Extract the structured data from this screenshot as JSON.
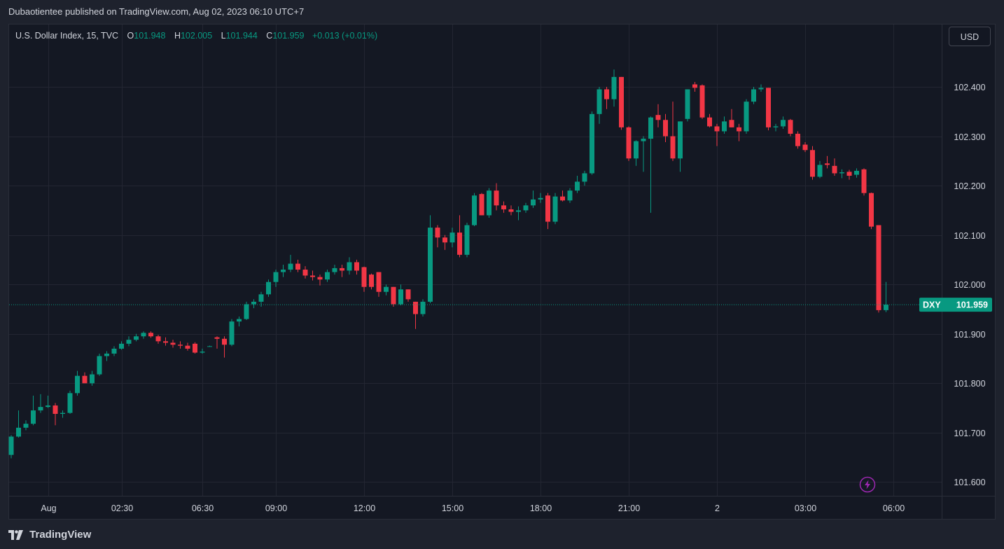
{
  "header": {
    "publisher": "Dubaotientee published on TradingView.com, Aug 02, 2023 06:10 UTC+7"
  },
  "legend": {
    "symbol": "U.S. Dollar Index, 15, TVC",
    "o_label": "O",
    "o_value": "101.948",
    "h_label": "H",
    "h_value": "102.005",
    "l_label": "L",
    "l_value": "101.944",
    "c_label": "C",
    "c_value": "101.959",
    "change": "+0.013 (+0.01%)"
  },
  "currency_button": "USD",
  "price_tag": {
    "symbol": "DXY",
    "value": "101.959"
  },
  "footer": {
    "brand": "TradingView"
  },
  "colors": {
    "up": "#089981",
    "down": "#f23645",
    "grid": "#232632",
    "background": "#141823",
    "alert_icon": "#9c27b0"
  },
  "icons": {
    "alert": "lightning-icon",
    "logo": "tradingview-logo-icon"
  },
  "chart_data": {
    "type": "candlestick",
    "interval": "15",
    "ylim": [
      101.58,
      102.475
    ],
    "yticks": [
      101.6,
      101.7,
      101.8,
      101.9,
      102.0,
      102.1,
      102.2,
      102.3,
      102.4
    ],
    "ytick_labels": [
      "101.600",
      "101.700",
      "101.800",
      "101.900",
      "102.000",
      "102.100",
      "102.200",
      "102.300",
      "102.400"
    ],
    "xticks": [
      {
        "label": "Aug",
        "index": 5
      },
      {
        "label": "02:30",
        "index": 15
      },
      {
        "label": "06:30",
        "index": 26
      },
      {
        "label": "09:00",
        "index": 36
      },
      {
        "label": "12:00",
        "index": 48
      },
      {
        "label": "15:00",
        "index": 60
      },
      {
        "label": "18:00",
        "index": 72
      },
      {
        "label": "21:00",
        "index": 84
      },
      {
        "label": "2",
        "index": 96
      },
      {
        "label": "03:00",
        "index": 108
      },
      {
        "label": "06:00",
        "index": 120
      }
    ],
    "last_price": 101.959,
    "candles": [
      {
        "o": 101.655,
        "h": 101.695,
        "l": 101.648,
        "c": 101.692
      },
      {
        "o": 101.692,
        "h": 101.745,
        "l": 101.69,
        "c": 101.71
      },
      {
        "o": 101.71,
        "h": 101.725,
        "l": 101.705,
        "c": 101.718
      },
      {
        "o": 101.718,
        "h": 101.775,
        "l": 101.715,
        "c": 101.745
      },
      {
        "o": 101.745,
        "h": 101.778,
        "l": 101.74,
        "c": 101.752
      },
      {
        "o": 101.752,
        "h": 101.775,
        "l": 101.75,
        "c": 101.755
      },
      {
        "o": 101.755,
        "h": 101.76,
        "l": 101.715,
        "c": 101.738
      },
      {
        "o": 101.738,
        "h": 101.745,
        "l": 101.73,
        "c": 101.74
      },
      {
        "o": 101.74,
        "h": 101.785,
        "l": 101.738,
        "c": 101.78
      },
      {
        "o": 101.78,
        "h": 101.825,
        "l": 101.775,
        "c": 101.815
      },
      {
        "o": 101.815,
        "h": 101.822,
        "l": 101.8,
        "c": 101.8
      },
      {
        "o": 101.8,
        "h": 101.825,
        "l": 101.795,
        "c": 101.818
      },
      {
        "o": 101.818,
        "h": 101.86,
        "l": 101.815,
        "c": 101.855
      },
      {
        "o": 101.855,
        "h": 101.865,
        "l": 101.845,
        "c": 101.86
      },
      {
        "o": 101.86,
        "h": 101.875,
        "l": 101.855,
        "c": 101.87
      },
      {
        "o": 101.87,
        "h": 101.885,
        "l": 101.868,
        "c": 101.88
      },
      {
        "o": 101.88,
        "h": 101.895,
        "l": 101.875,
        "c": 101.888
      },
      {
        "o": 101.888,
        "h": 101.9,
        "l": 101.885,
        "c": 101.895
      },
      {
        "o": 101.895,
        "h": 101.905,
        "l": 101.89,
        "c": 101.902
      },
      {
        "o": 101.902,
        "h": 101.905,
        "l": 101.892,
        "c": 101.895
      },
      {
        "o": 101.895,
        "h": 101.898,
        "l": 101.88,
        "c": 101.885
      },
      {
        "o": 101.885,
        "h": 101.893,
        "l": 101.876,
        "c": 101.882
      },
      {
        "o": 101.882,
        "h": 101.888,
        "l": 101.872,
        "c": 101.878
      },
      {
        "o": 101.878,
        "h": 101.885,
        "l": 101.87,
        "c": 101.876
      },
      {
        "o": 101.876,
        "h": 101.882,
        "l": 101.866,
        "c": 101.87
      },
      {
        "o": 101.88,
        "h": 101.883,
        "l": 101.86,
        "c": 101.862
      },
      {
        "o": 101.862,
        "h": 101.87,
        "l": 101.86,
        "c": 101.864
      },
      {
        "o": 101.875,
        "h": 101.876,
        "l": 101.874,
        "c": 101.875
      },
      {
        "o": 101.893,
        "h": 101.895,
        "l": 101.87,
        "c": 101.89
      },
      {
        "o": 101.89,
        "h": 101.895,
        "l": 101.852,
        "c": 101.878
      },
      {
        "o": 101.878,
        "h": 101.93,
        "l": 101.875,
        "c": 101.925
      },
      {
        "o": 101.925,
        "h": 101.935,
        "l": 101.915,
        "c": 101.93
      },
      {
        "o": 101.93,
        "h": 101.965,
        "l": 101.928,
        "c": 101.96
      },
      {
        "o": 101.96,
        "h": 101.97,
        "l": 101.952,
        "c": 101.965
      },
      {
        "o": 101.965,
        "h": 101.985,
        "l": 101.955,
        "c": 101.98
      },
      {
        "o": 101.98,
        "h": 102.01,
        "l": 101.975,
        "c": 102.005
      },
      {
        "o": 102.005,
        "h": 102.03,
        "l": 101.995,
        "c": 102.025
      },
      {
        "o": 102.025,
        "h": 102.04,
        "l": 102.015,
        "c": 102.03
      },
      {
        "o": 102.03,
        "h": 102.06,
        "l": 102.025,
        "c": 102.042
      },
      {
        "o": 102.042,
        "h": 102.05,
        "l": 102.025,
        "c": 102.03
      },
      {
        "o": 102.03,
        "h": 102.037,
        "l": 102.012,
        "c": 102.018
      },
      {
        "o": 102.018,
        "h": 102.028,
        "l": 102.008,
        "c": 102.015
      },
      {
        "o": 102.015,
        "h": 102.02,
        "l": 101.998,
        "c": 102.01
      },
      {
        "o": 102.01,
        "h": 102.03,
        "l": 102.005,
        "c": 102.025
      },
      {
        "o": 102.025,
        "h": 102.04,
        "l": 102.02,
        "c": 102.033
      },
      {
        "o": 102.033,
        "h": 102.04,
        "l": 102.015,
        "c": 102.028
      },
      {
        "o": 102.028,
        "h": 102.055,
        "l": 102.02,
        "c": 102.045
      },
      {
        "o": 102.045,
        "h": 102.05,
        "l": 102.02,
        "c": 102.028
      },
      {
        "o": 102.035,
        "h": 102.036,
        "l": 101.985,
        "c": 101.995
      },
      {
        "o": 102.02,
        "h": 102.022,
        "l": 101.99,
        "c": 101.995
      },
      {
        "o": 102.025,
        "h": 102.025,
        "l": 101.975,
        "c": 101.985
      },
      {
        "o": 101.985,
        "h": 102.0,
        "l": 101.978,
        "c": 101.995
      },
      {
        "o": 101.995,
        "h": 101.995,
        "l": 101.955,
        "c": 101.96
      },
      {
        "o": 101.96,
        "h": 102.0,
        "l": 101.958,
        "c": 101.99
      },
      {
        "o": 101.99,
        "h": 101.99,
        "l": 101.965,
        "c": 101.97
      },
      {
        "o": 101.965,
        "h": 101.965,
        "l": 101.91,
        "c": 101.94
      },
      {
        "o": 101.94,
        "h": 101.97,
        "l": 101.935,
        "c": 101.965
      },
      {
        "o": 101.965,
        "h": 102.14,
        "l": 101.962,
        "c": 102.115
      },
      {
        "o": 102.115,
        "h": 102.12,
        "l": 102.075,
        "c": 102.095
      },
      {
        "o": 102.095,
        "h": 102.1,
        "l": 102.07,
        "c": 102.085
      },
      {
        "o": 102.085,
        "h": 102.115,
        "l": 102.075,
        "c": 102.105
      },
      {
        "o": 102.105,
        "h": 102.14,
        "l": 102.055,
        "c": 102.06
      },
      {
        "o": 102.06,
        "h": 102.125,
        "l": 102.055,
        "c": 102.12
      },
      {
        "o": 102.12,
        "h": 102.185,
        "l": 102.118,
        "c": 102.18
      },
      {
        "o": 102.183,
        "h": 102.185,
        "l": 102.14,
        "c": 102.14
      },
      {
        "o": 102.14,
        "h": 102.195,
        "l": 102.135,
        "c": 102.19
      },
      {
        "o": 102.19,
        "h": 102.205,
        "l": 102.15,
        "c": 102.16
      },
      {
        "o": 102.16,
        "h": 102.168,
        "l": 102.145,
        "c": 102.152
      },
      {
        "o": 102.152,
        "h": 102.16,
        "l": 102.14,
        "c": 102.147
      },
      {
        "o": 102.147,
        "h": 102.158,
        "l": 102.13,
        "c": 102.15
      },
      {
        "o": 102.15,
        "h": 102.165,
        "l": 102.145,
        "c": 102.16
      },
      {
        "o": 102.16,
        "h": 102.19,
        "l": 102.155,
        "c": 102.172
      },
      {
        "o": 102.172,
        "h": 102.185,
        "l": 102.165,
        "c": 102.175
      },
      {
        "o": 102.18,
        "h": 102.185,
        "l": 102.112,
        "c": 102.127
      },
      {
        "o": 102.127,
        "h": 102.185,
        "l": 102.122,
        "c": 102.178
      },
      {
        "o": 102.178,
        "h": 102.19,
        "l": 102.168,
        "c": 102.17
      },
      {
        "o": 102.17,
        "h": 102.195,
        "l": 102.165,
        "c": 102.19
      },
      {
        "o": 102.19,
        "h": 102.22,
        "l": 102.185,
        "c": 102.208
      },
      {
        "o": 102.208,
        "h": 102.23,
        "l": 102.2,
        "c": 102.225
      },
      {
        "o": 102.225,
        "h": 102.35,
        "l": 102.222,
        "c": 102.345
      },
      {
        "o": 102.345,
        "h": 102.4,
        "l": 102.325,
        "c": 102.395
      },
      {
        "o": 102.395,
        "h": 102.4,
        "l": 102.355,
        "c": 102.375
      },
      {
        "o": 102.375,
        "h": 102.435,
        "l": 102.36,
        "c": 102.42
      },
      {
        "o": 102.42,
        "h": 102.42,
        "l": 102.313,
        "c": 102.318
      },
      {
        "o": 102.318,
        "h": 102.32,
        "l": 102.25,
        "c": 102.255
      },
      {
        "o": 102.255,
        "h": 102.292,
        "l": 102.24,
        "c": 102.29
      },
      {
        "o": 102.29,
        "h": 102.3,
        "l": 102.228,
        "c": 102.295
      },
      {
        "o": 102.295,
        "h": 102.34,
        "l": 102.145,
        "c": 102.338
      },
      {
        "o": 102.343,
        "h": 102.365,
        "l": 102.318,
        "c": 102.333
      },
      {
        "o": 102.333,
        "h": 102.345,
        "l": 102.288,
        "c": 102.3
      },
      {
        "o": 102.3,
        "h": 102.37,
        "l": 102.25,
        "c": 102.255
      },
      {
        "o": 102.255,
        "h": 102.33,
        "l": 102.228,
        "c": 102.33
      },
      {
        "o": 102.335,
        "h": 102.395,
        "l": 102.33,
        "c": 102.395
      },
      {
        "o": 102.405,
        "h": 102.41,
        "l": 102.39,
        "c": 102.398
      },
      {
        "o": 102.403,
        "h": 102.405,
        "l": 102.335,
        "c": 102.338
      },
      {
        "o": 102.338,
        "h": 102.345,
        "l": 102.318,
        "c": 102.32
      },
      {
        "o": 102.32,
        "h": 102.325,
        "l": 102.28,
        "c": 102.31
      },
      {
        "o": 102.31,
        "h": 102.34,
        "l": 102.305,
        "c": 102.33
      },
      {
        "o": 102.333,
        "h": 102.355,
        "l": 102.318,
        "c": 102.318
      },
      {
        "o": 102.318,
        "h": 102.325,
        "l": 102.29,
        "c": 102.31
      },
      {
        "o": 102.31,
        "h": 102.375,
        "l": 102.305,
        "c": 102.37
      },
      {
        "o": 102.37,
        "h": 102.4,
        "l": 102.365,
        "c": 102.395
      },
      {
        "o": 102.395,
        "h": 102.405,
        "l": 102.39,
        "c": 102.398
      },
      {
        "o": 102.398,
        "h": 102.398,
        "l": 102.312,
        "c": 102.318
      },
      {
        "o": 102.318,
        "h": 102.325,
        "l": 102.31,
        "c": 102.32
      },
      {
        "o": 102.32,
        "h": 102.34,
        "l": 102.315,
        "c": 102.333
      },
      {
        "o": 102.333,
        "h": 102.335,
        "l": 102.3,
        "c": 102.305
      },
      {
        "o": 102.305,
        "h": 102.31,
        "l": 102.275,
        "c": 102.28
      },
      {
        "o": 102.283,
        "h": 102.288,
        "l": 102.268,
        "c": 102.272
      },
      {
        "o": 102.272,
        "h": 102.28,
        "l": 102.212,
        "c": 102.218
      },
      {
        "o": 102.218,
        "h": 102.25,
        "l": 102.215,
        "c": 102.242
      },
      {
        "o": 102.245,
        "h": 102.26,
        "l": 102.235,
        "c": 102.242
      },
      {
        "o": 102.24,
        "h": 102.255,
        "l": 102.22,
        "c": 102.225
      },
      {
        "o": 102.225,
        "h": 102.233,
        "l": 102.215,
        "c": 102.227
      },
      {
        "o": 102.228,
        "h": 102.232,
        "l": 102.212,
        "c": 102.22
      },
      {
        "o": 102.222,
        "h": 102.235,
        "l": 102.216,
        "c": 102.23
      },
      {
        "o": 102.233,
        "h": 102.235,
        "l": 102.18,
        "c": 102.185
      },
      {
        "o": 102.185,
        "h": 102.186,
        "l": 102.112,
        "c": 102.117
      },
      {
        "o": 102.12,
        "h": 102.12,
        "l": 101.943,
        "c": 101.948
      },
      {
        "o": 101.948,
        "h": 102.005,
        "l": 101.944,
        "c": 101.959
      }
    ]
  }
}
